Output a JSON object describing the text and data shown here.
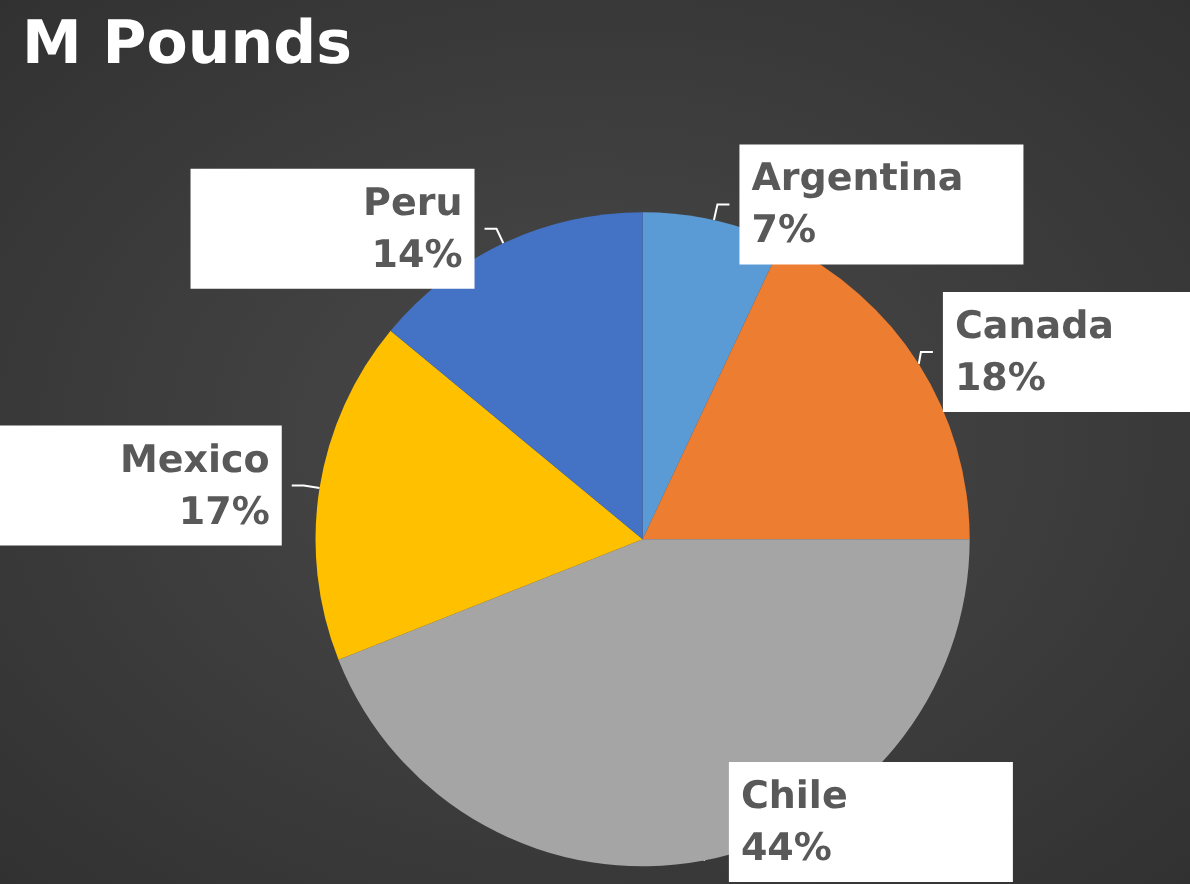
{
  "chart_data": {
    "type": "pie",
    "title": "M Pounds",
    "categories": [
      "Argentina",
      "Canada",
      "Chile",
      "Mexico",
      "Peru"
    ],
    "values": [
      7,
      18,
      44,
      17,
      14
    ],
    "value_labels": [
      "7%",
      "18%",
      "44%",
      "17%",
      "14%"
    ],
    "colors": [
      "#5b9bd5",
      "#ed7d31",
      "#a5a5a5",
      "#ffc000",
      "#4472c4"
    ],
    "legend": false
  }
}
